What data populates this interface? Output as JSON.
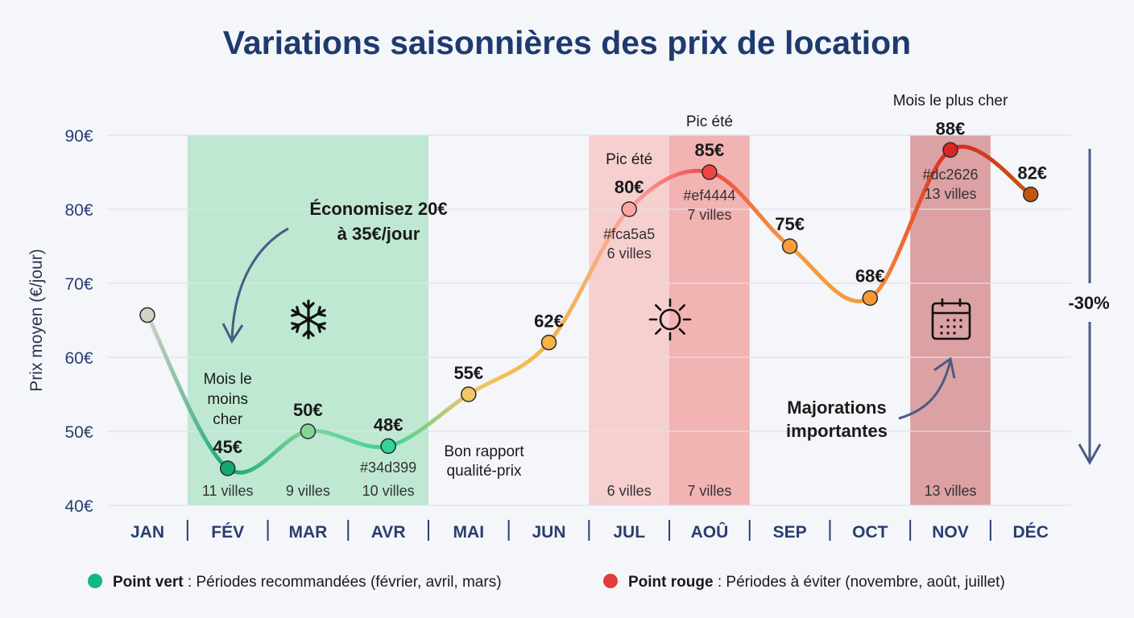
{
  "chart_data": {
    "type": "line",
    "title": "Variations saisonnières des prix de location",
    "ylabel": "Prix moyen (€/jour)",
    "xlabel": "",
    "ylim": [
      40,
      90
    ],
    "yticks": [
      40,
      50,
      60,
      70,
      80,
      90
    ],
    "ytick_labels": [
      "40€",
      "50€",
      "60€",
      "70€",
      "80€",
      "90€"
    ],
    "grid": true,
    "categories": [
      "JAN",
      "FÉV",
      "MAR",
      "AVR",
      "MAI",
      "JUN",
      "JUL",
      "AOÛ",
      "SEP",
      "OCT",
      "NOV",
      "DÉC"
    ],
    "values": [
      65.7,
      45,
      50,
      48,
      55,
      62,
      80,
      85,
      75,
      68,
      88,
      82
    ],
    "value_labels": [
      "",
      "45€",
      "50€",
      "48€",
      "55€",
      "62€",
      "80€",
      "85€",
      "75€",
      "68€",
      "88€",
      "82€"
    ],
    "point_colors": [
      "#d4d1c6",
      "#10a874",
      "#86d49a",
      "#34d399",
      "#f0c766",
      "#f6b443",
      "#fca5a5",
      "#ef4444",
      "#f59e3b",
      "#f7983a",
      "#dc2626",
      "#c2570c"
    ],
    "highlight_bands": [
      {
        "months": [
          "FÉV",
          "MAR",
          "AVR"
        ],
        "color": "#bfe8d2"
      },
      {
        "months": [
          "JUL"
        ],
        "color": "#f6cfcf"
      },
      {
        "months": [
          "AOÛ"
        ],
        "color": "#f2b3b3"
      },
      {
        "months": [
          "NOV"
        ],
        "color": "#dca1a3"
      }
    ],
    "city_counts": [
      {
        "month": "FÉV",
        "label": "11 villes"
      },
      {
        "month": "MAR",
        "label": "9 villes"
      },
      {
        "month": "AVR",
        "label": "10 villes"
      },
      {
        "month": "JUL",
        "label": "6 villes"
      },
      {
        "month": "AOÛ",
        "label": "7 villes"
      },
      {
        "month": "NOV",
        "label": "13 villes"
      }
    ],
    "annotations": {
      "feb_top": [
        "Mois le",
        "moins",
        "cher"
      ],
      "apr_color": "#34d399",
      "may_note": [
        "Bon rapport",
        "qualité-prix"
      ],
      "jul_top": "Pic été",
      "jul_below": [
        "#fca5a5",
        "6 villes"
      ],
      "aug_top": "Pic été",
      "aug_below": [
        "#ef4444",
        "7 villes"
      ],
      "nov_top": "Mois le plus cher",
      "nov_below": [
        "#dc2626",
        "13 villes"
      ],
      "save": [
        "Économisez 20€",
        "à 35€/jour"
      ],
      "surcharge": [
        "Majorations",
        "importantes"
      ],
      "drop": "-30%"
    },
    "icons": {
      "winter": "snowflake-icon",
      "summer": "sun-icon",
      "holiday": "calendar-icon"
    },
    "legend": [
      {
        "bold": "Point vert",
        "text": " : Périodes recommandées (février, avril, mars)",
        "color": "#10b981"
      },
      {
        "bold": "Point rouge",
        "text": " : Périodes à éviter (novembre, août, juillet)",
        "color": "#e23b3b"
      }
    ]
  }
}
